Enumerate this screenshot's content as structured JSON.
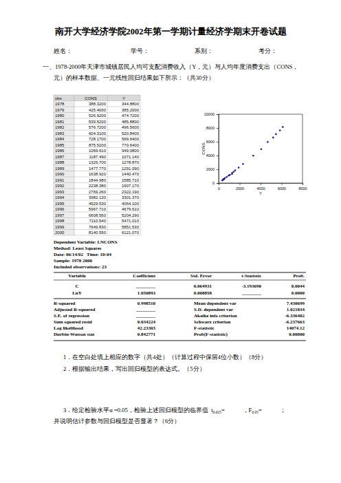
{
  "header": {
    "title": "南开大学经济学院2002年第一学期计量经济学期末开卷试题",
    "info": [
      "姓名：",
      "学号：",
      "系别：",
      "考分："
    ]
  },
  "question1": {
    "lines": [
      "一、1978-2000年天津市城镇居民人均可支配消费收入（Y，元）与人均年度消费支出（CONS，",
      "元）的样本数据、一元线性回归结果如下所示：（共30分）"
    ]
  },
  "table": {
    "columns": [
      "obs",
      "CONS",
      "Y"
    ],
    "rows": [
      [
        "1978",
        "388.3200",
        "344.8800"
      ],
      [
        "1979",
        "425.4000",
        "385.2000"
      ],
      [
        "1980",
        "526.9200",
        "474.7200"
      ],
      [
        "1981",
        "539.5200",
        "485.8800"
      ],
      [
        "1982",
        "576.7200",
        "496.5600"
      ],
      [
        "1983",
        "604.3100",
        "520.8400"
      ],
      [
        "1984",
        "728.1700",
        "599.6400"
      ],
      [
        "1985",
        "875.5200",
        "770.6400"
      ],
      [
        "1986",
        "1069.610",
        "949.0800"
      ],
      [
        "1987",
        "1187.490",
        "1071.140"
      ],
      [
        "1988",
        "1329.700",
        "1278.870"
      ],
      [
        "1989",
        "1477.770",
        "1291.090"
      ],
      [
        "1990",
        "1638.920",
        "1440.470"
      ],
      [
        "1991",
        "1844.980",
        "1585.710"
      ],
      [
        "1992",
        "2238.380",
        "1907.170"
      ],
      [
        "1993",
        "2769.260",
        "2322.190"
      ],
      [
        "1994",
        "3982.130",
        "3301.370"
      ],
      [
        "1995",
        "4929.530",
        "4064.100"
      ],
      [
        "1996",
        "5967.710",
        "4679.610"
      ],
      [
        "1997",
        "6608.560",
        "5204.290"
      ],
      [
        "1998",
        "7110.540",
        "5471.010"
      ],
      [
        "1999",
        "7649.830",
        "5851.530"
      ],
      [
        "2000",
        "8140.550",
        "6121.070"
      ]
    ]
  },
  "chart_data": {
    "type": "scatter",
    "x_label": "Y",
    "y_label": "CONS",
    "x": [
      344.88,
      385.2,
      474.72,
      485.88,
      496.56,
      520.84,
      599.64,
      770.64,
      949.08,
      1071.14,
      1278.87,
      1291.09,
      1440.47,
      1585.71,
      1907.17,
      2322.19,
      3301.37,
      4064.1,
      4679.61,
      5204.29,
      5471.01,
      5851.53,
      6121.07
    ],
    "values": [
      388.32,
      425.4,
      526.92,
      539.52,
      576.72,
      604.31,
      728.17,
      875.52,
      1069.61,
      1187.49,
      1329.7,
      1477.77,
      1638.92,
      1844.98,
      2238.38,
      2769.26,
      3982.13,
      4929.53,
      5967.71,
      6608.56,
      7110.54,
      7649.83,
      8140.55
    ],
    "xlim": [
      0,
      8000
    ],
    "ylim": [
      0,
      10000
    ],
    "xticks": [
      0,
      2000,
      4000,
      6000,
      8000
    ],
    "yticks": [
      0,
      2000,
      4000,
      6000,
      8000,
      10000
    ],
    "marker": "circle",
    "color": "#1a1a80"
  },
  "regression": {
    "meta": [
      "Dependent Variable: LNCONS",
      "Method: Least Squares",
      "Date: 06/14/02   Time: 10:04",
      "Sample: 1978 2000",
      "Included observations: 23"
    ],
    "columns": [
      "Variable",
      "Coefficient",
      "Std. Error",
      "t-Statistic",
      "Prob."
    ],
    "rows": [
      [
        "C",
        "________",
        "0.064931",
        "-3.193690",
        "0.0044"
      ],
      [
        "LnY",
        "1.050893",
        "0.008858",
        "________",
        "0.0000"
      ]
    ],
    "stats": [
      [
        "R-squared",
        "0.998510",
        "Mean dependent var",
        "7.430699"
      ],
      [
        "Adjusted R-squared",
        "________",
        "S.D. dependent var",
        "1.021834"
      ],
      [
        "S.E. of regression",
        "________",
        "Akaike info criterion",
        "-6.336402"
      ],
      [
        "Sum squared resid",
        "0.034224",
        "Schwarz criterion",
        "-6.237663"
      ],
      [
        "Log likelihood",
        "42.23303",
        "F-statistic",
        "14074.12"
      ],
      [
        "Durbin-Watson stat",
        "0.842771",
        "Prob(F-statistic)",
        "0.00000"
      ]
    ]
  },
  "questions": {
    "q1": "1．在空白处填上相应的数字（共4处）（计算过程中保留4位小数）（8分）",
    "q2": "2．根据输出结果，写出回归模型的表达式。（5分）",
    "q3_line1": [
      {
        "text": "3．给定检验水平α =0.05，检验上述回归模型的临界值  t",
        "sub": false
      },
      {
        "text": "0.025",
        "sub": true
      },
      {
        "text": "=            ，F",
        "sub": false
      },
      {
        "text": "0.05",
        "sub": true
      },
      {
        "text": "=            ；",
        "sub": false
      }
    ],
    "q3_line2": "并说明估计参数与回归模型是否显著？（6分）"
  }
}
